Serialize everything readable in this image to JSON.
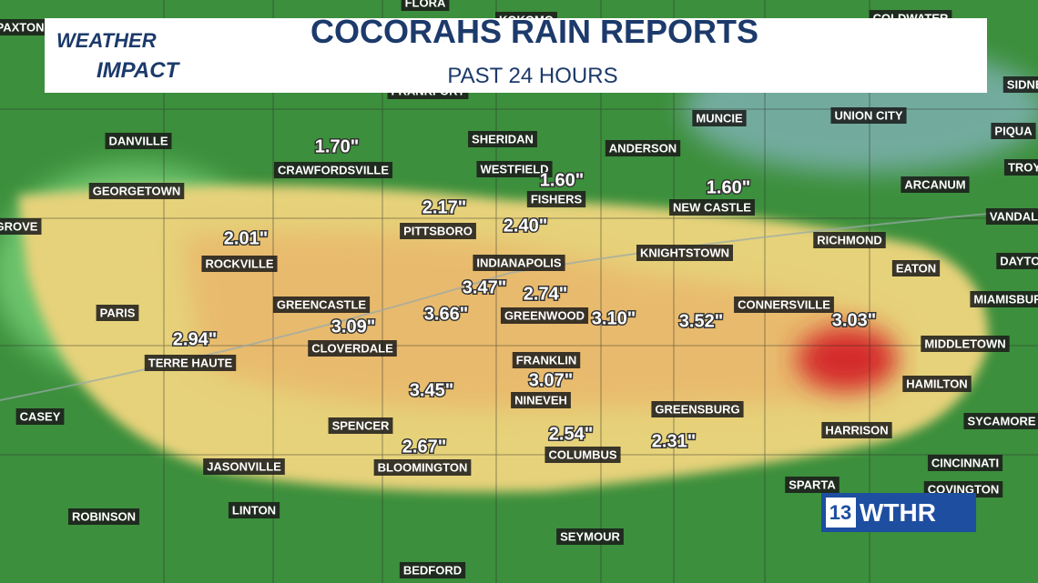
{
  "header": {
    "logo_top": "WEATHER",
    "logo_bottom": "IMPACT",
    "title": "COCORAHS RAIN REPORTS",
    "subtitle": "PAST 24 HOURS"
  },
  "cities": [
    "PAXTON",
    "FLORA",
    "KOKOMO",
    "COLDWATER",
    "FRANKFORT",
    "DANVILLE",
    "CRAWFORDSVILLE",
    "SHERIDAN",
    "MUNCIE",
    "UNION CITY",
    "PIQUA",
    "ANDERSON",
    "WESTFIELD",
    "FISHERS",
    "GEORGETOWN",
    "ARCANUM",
    "TROY",
    "NEW CASTLE",
    "VANDALIA",
    "GROVE",
    "PITTSBORO",
    "RICHMOND",
    "KNIGHTSTOWN",
    "ROCKVILLE",
    "INDIANAPOLIS",
    "DAYTON",
    "EATON",
    "GREENCASTLE",
    "CONNERSVILLE",
    "MIAMISBURG",
    "PARIS",
    "GREENWOOD",
    "CLOVERDALE",
    "MIDDLETOWN",
    "TERRE HAUTE",
    "FRANKLIN",
    "HAMILTON",
    "NINEVEH",
    "GREENSBURG",
    "CASEY",
    "SYCAMORE",
    "SPENCER",
    "HARRISON",
    "COLUMBUS",
    "JASONVILLE",
    "BLOOMINGTON",
    "CINCINNATI",
    "SPARTA",
    "COVINGTON",
    "ROBINSON",
    "LINTON",
    "SEYMOUR",
    "BEDFORD",
    "SIDNEY"
  ],
  "reports": [
    "1.70\"",
    "1.60\"",
    "1.60\"",
    "2.17\"",
    "2.40\"",
    "2.01\"",
    "3.47\"",
    "2.74\"",
    "3.09\"",
    "3.66\"",
    "3.10\"",
    "3.52\"",
    "3.03\"",
    "2.94\"",
    "3.45\"",
    "3.07\"",
    "2.67\"",
    "2.54\"",
    "2.31\""
  ],
  "brand": {
    "channel": "13",
    "name": "WTHR"
  }
}
